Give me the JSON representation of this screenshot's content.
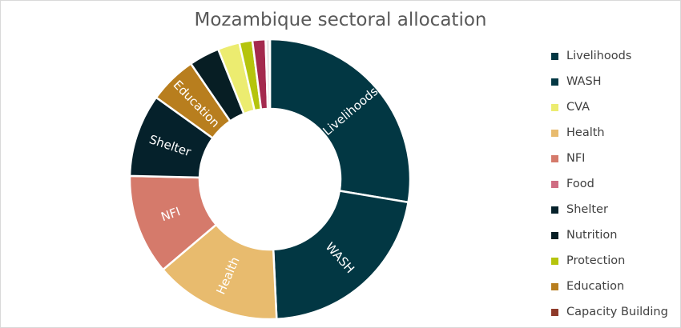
{
  "chart_data": {
    "type": "pie",
    "variant": "donut",
    "title": "Mozambique sectoral allocation",
    "legend_position": "right",
    "slices": [
      {
        "name": "Livelihoods",
        "value": 27.5,
        "color": "#023743",
        "label": "Livelihoods"
      },
      {
        "name": "WASH",
        "value": 21.5,
        "color": "#023743",
        "label": "WASH"
      },
      {
        "name": "CVA",
        "value": 0,
        "color": "#ECEC70",
        "label": ""
      },
      {
        "name": "Health",
        "value": 14.5,
        "color": "#E8BB6E",
        "label": "Health"
      },
      {
        "name": "NFI",
        "value": 11.5,
        "color": "#D57A6B",
        "label": "NFI"
      },
      {
        "name": "Food",
        "value": 0,
        "color": "#CF6C82",
        "label": ""
      },
      {
        "name": "Shelter",
        "value": 9.5,
        "color": "#05212B",
        "label": "Shelter"
      },
      {
        "name": "Nutrition",
        "value": 0,
        "color": "#071E24",
        "label": ""
      },
      {
        "name": "Protection",
        "value": 0,
        "color": "#B5C40D",
        "label": ""
      },
      {
        "name": "Education",
        "value": 5.5,
        "color": "#B87E1E",
        "label": "Education"
      },
      {
        "name": "Capacity Building",
        "value": 0,
        "color": "#8E3A2A",
        "label": ""
      },
      {
        "name": "",
        "value": 3.5,
        "color": "#071E24",
        "label": ""
      },
      {
        "name": "",
        "value": 2.5,
        "color": "#ECEC70",
        "label": ""
      },
      {
        "name": "",
        "value": 1.5,
        "color": "#B5C40D",
        "label": ""
      },
      {
        "name": "",
        "value": 1.5,
        "color": "#A42A4E",
        "label": ""
      },
      {
        "name": "",
        "value": 0.5,
        "color": "#E8E8E8",
        "label": ""
      }
    ],
    "legend": [
      {
        "label": "Livelihoods",
        "color": "#023743"
      },
      {
        "label": "WASH",
        "color": "#023743"
      },
      {
        "label": "CVA",
        "color": "#ECEC70"
      },
      {
        "label": "Health",
        "color": "#E8BB6E"
      },
      {
        "label": "NFI",
        "color": "#D57A6B"
      },
      {
        "label": "Food",
        "color": "#CF6C82"
      },
      {
        "label": "Shelter",
        "color": "#05212B"
      },
      {
        "label": "Nutrition",
        "color": "#071E24"
      },
      {
        "label": "Protection",
        "color": "#B5C40D"
      },
      {
        "label": "Education",
        "color": "#B87E1E"
      },
      {
        "label": "Capacity Building",
        "color": "#8E3A2A"
      }
    ]
  }
}
